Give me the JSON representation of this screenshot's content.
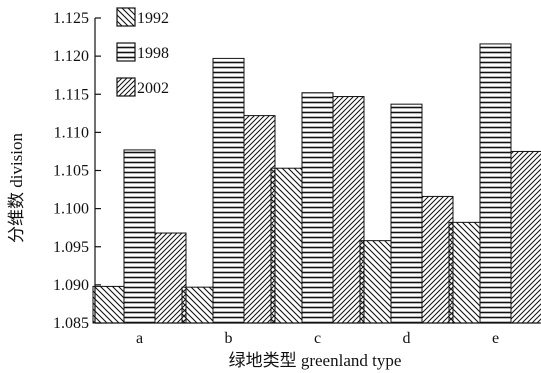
{
  "chart_data": {
    "type": "bar",
    "xlabel": "绿地类型 greenland type",
    "ylabel": "分维数 division",
    "categories": [
      "a",
      "b",
      "c",
      "d",
      "e"
    ],
    "series": [
      {
        "name": "1992",
        "values": [
          1.0898,
          1.0897,
          1.1053,
          1.0958,
          1.0982
        ],
        "pattern": "diag-back"
      },
      {
        "name": "1998",
        "values": [
          1.1077,
          1.1197,
          1.1152,
          1.1137,
          1.1216
        ],
        "pattern": "horizontal"
      },
      {
        "name": "2002",
        "values": [
          1.0968,
          1.1122,
          1.1147,
          1.1016,
          1.1075
        ],
        "pattern": "diag-fwd"
      }
    ],
    "ylim": [
      1.085,
      1.125
    ],
    "yticks": [
      "1.085",
      "1.090",
      "1.095",
      "1.100",
      "1.105",
      "1.110",
      "1.115",
      "1.120",
      "1.125"
    ],
    "legend_position": "top-left",
    "grid": false
  }
}
